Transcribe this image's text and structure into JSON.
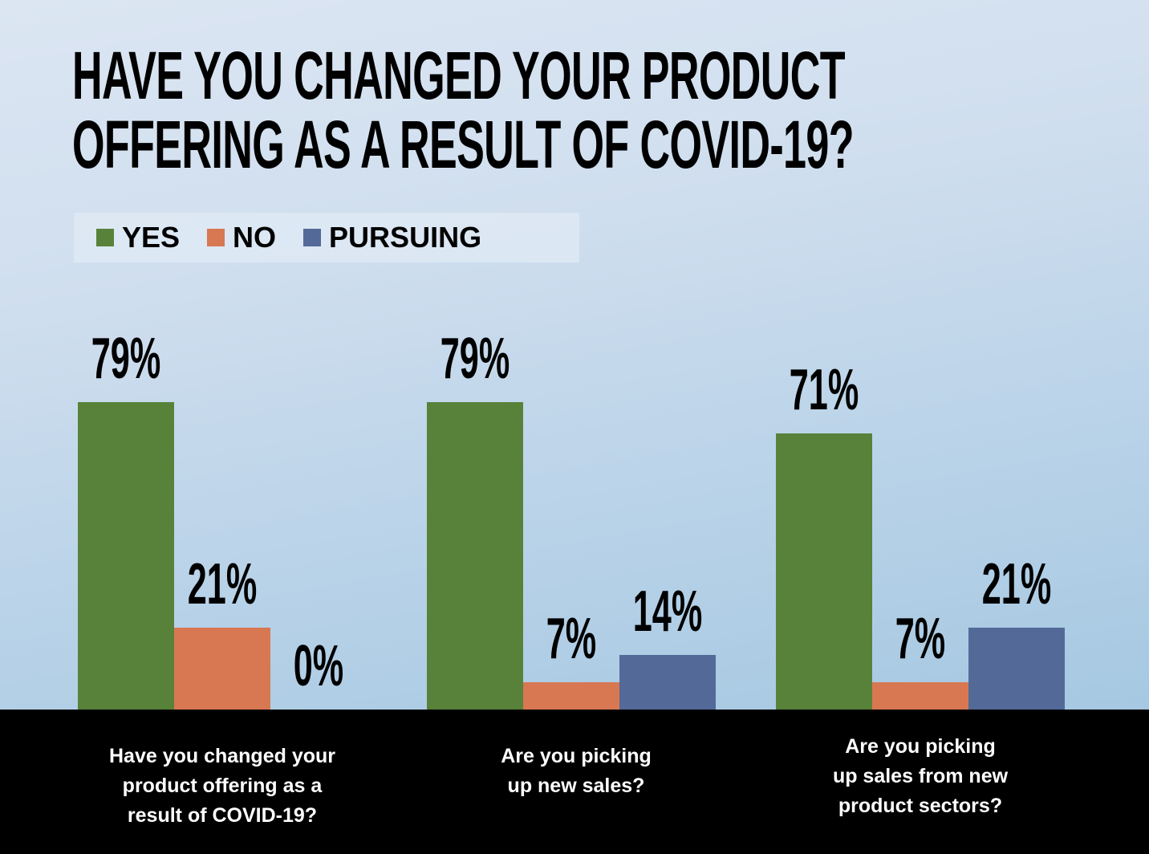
{
  "title": {
    "line1": "HAVE YOU CHANGED YOUR PRODUCT",
    "line2": "OFFERING AS A RESULT OF COVID-19?"
  },
  "legend": [
    {
      "label": "YES",
      "color": "#58823a"
    },
    {
      "label": "NO",
      "color": "#d77852"
    },
    {
      "label": "PURSUING",
      "color": "#536a99"
    }
  ],
  "groups": [
    {
      "label_lines": [
        "Have you changed your",
        "product offering as a",
        "result of COVID-19?"
      ],
      "values": [
        "79%",
        "21%",
        "0%"
      ]
    },
    {
      "label_lines": [
        "Are you picking",
        "up new sales?"
      ],
      "values": [
        "79%",
        "7%",
        "14%"
      ]
    },
    {
      "label_lines": [
        "Are you picking",
        "up sales from new",
        "product sectors?"
      ],
      "values": [
        "71%",
        "7%",
        "21%"
      ]
    }
  ],
  "chart_data": {
    "type": "bar",
    "title": "HAVE YOU CHANGED YOUR PRODUCT OFFERING AS A RESULT OF COVID-19?",
    "categories": [
      "Have you changed your product offering as a result of COVID-19?",
      "Are you picking up new sales?",
      "Are you picking up sales from new product sectors?"
    ],
    "series": [
      {
        "name": "YES",
        "color": "#58823a",
        "values": [
          79,
          79,
          71
        ]
      },
      {
        "name": "NO",
        "color": "#d77852",
        "values": [
          21,
          7,
          7
        ]
      },
      {
        "name": "PURSUING",
        "color": "#536a99",
        "values": [
          0,
          14,
          21
        ]
      }
    ],
    "xlabel": "",
    "ylabel": "",
    "ylim": [
      0,
      100
    ],
    "value_format": "percent",
    "grid": false,
    "legend_position": "top-left",
    "data_labels": true
  }
}
